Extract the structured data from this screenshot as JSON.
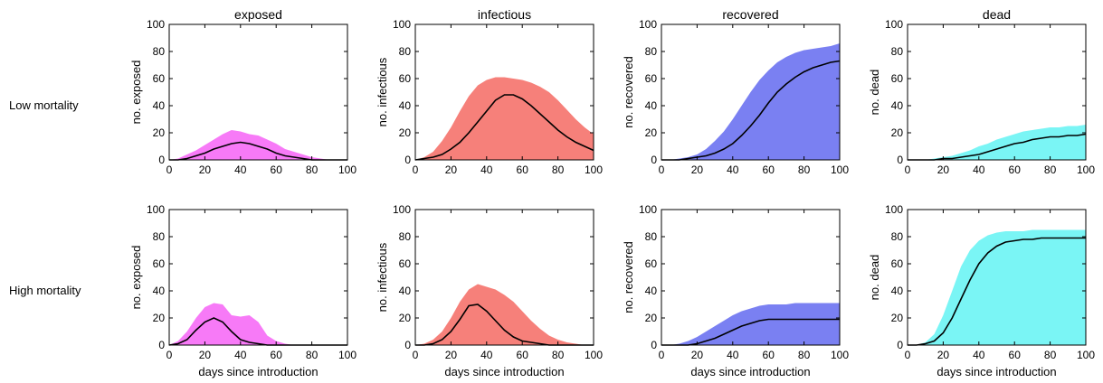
{
  "figure": {
    "column_titles": [
      "exposed",
      "infectious",
      "recovered",
      "dead"
    ],
    "row_labels": [
      "Low mortality",
      "High mortality"
    ]
  },
  "chart_data": [
    {
      "type": "area",
      "row": "Low mortality",
      "column": "exposed",
      "title": "exposed",
      "xlabel": "",
      "ylabel": "no. exposed",
      "xlim": [
        0,
        100
      ],
      "ylim": [
        0,
        100
      ],
      "xticks": [
        0,
        20,
        40,
        60,
        80,
        100
      ],
      "yticks": [
        0,
        20,
        40,
        60,
        80,
        100
      ],
      "color": "#f77af7",
      "x": [
        0,
        5,
        10,
        15,
        20,
        25,
        30,
        35,
        40,
        45,
        50,
        55,
        60,
        65,
        70,
        75,
        80,
        85,
        90,
        95,
        100
      ],
      "upper": [
        0,
        1,
        4,
        7,
        11,
        15,
        19,
        22,
        21,
        19,
        18,
        15,
        12,
        8,
        6,
        4,
        2,
        1,
        0,
        0,
        0
      ],
      "mean": [
        0,
        0,
        1,
        3,
        5,
        8,
        10,
        12,
        13,
        12,
        10,
        8,
        5,
        3,
        2,
        1,
        0,
        0,
        0,
        0,
        0
      ]
    },
    {
      "type": "area",
      "row": "Low mortality",
      "column": "infectious",
      "title": "infectious",
      "xlabel": "",
      "ylabel": "no. infectious",
      "xlim": [
        0,
        100
      ],
      "ylim": [
        0,
        100
      ],
      "xticks": [
        0,
        20,
        40,
        60,
        80,
        100
      ],
      "yticks": [
        0,
        20,
        40,
        60,
        80,
        100
      ],
      "color": "#f6807a",
      "x": [
        0,
        5,
        10,
        15,
        20,
        25,
        30,
        35,
        40,
        45,
        50,
        55,
        60,
        65,
        70,
        75,
        80,
        85,
        90,
        95,
        100
      ],
      "upper": [
        0,
        2,
        6,
        14,
        24,
        36,
        47,
        55,
        59,
        61,
        61,
        60,
        59,
        57,
        54,
        50,
        44,
        37,
        30,
        24,
        19
      ],
      "mean": [
        0,
        1,
        2,
        4,
        8,
        13,
        20,
        28,
        36,
        44,
        48,
        48,
        45,
        40,
        34,
        28,
        22,
        17,
        13,
        10,
        7
      ]
    },
    {
      "type": "area",
      "row": "Low mortality",
      "column": "recovered",
      "title": "recovered",
      "xlabel": "",
      "ylabel": "no. recovered",
      "xlim": [
        0,
        100
      ],
      "ylim": [
        0,
        100
      ],
      "xticks": [
        0,
        20,
        40,
        60,
        80,
        100
      ],
      "yticks": [
        0,
        20,
        40,
        60,
        80,
        100
      ],
      "color": "#7a80f2",
      "x": [
        0,
        5,
        10,
        15,
        20,
        25,
        30,
        35,
        40,
        45,
        50,
        55,
        60,
        65,
        70,
        75,
        80,
        85,
        90,
        95,
        100
      ],
      "upper": [
        0,
        0,
        1,
        2,
        4,
        8,
        14,
        21,
        30,
        40,
        50,
        59,
        66,
        72,
        76,
        79,
        81,
        82,
        83,
        84,
        86
      ],
      "mean": [
        0,
        0,
        0,
        1,
        2,
        3,
        5,
        8,
        12,
        18,
        25,
        33,
        42,
        50,
        56,
        61,
        65,
        68,
        70,
        72,
        73
      ]
    },
    {
      "type": "area",
      "row": "Low mortality",
      "column": "dead",
      "title": "dead",
      "xlabel": "",
      "ylabel": "no. dead",
      "xlim": [
        0,
        100
      ],
      "ylim": [
        0,
        100
      ],
      "xticks": [
        0,
        20,
        40,
        60,
        80,
        100
      ],
      "yticks": [
        0,
        20,
        40,
        60,
        80,
        100
      ],
      "color": "#7af5f5",
      "x": [
        0,
        5,
        10,
        15,
        20,
        25,
        30,
        35,
        40,
        45,
        50,
        55,
        60,
        65,
        70,
        75,
        80,
        85,
        90,
        95,
        100
      ],
      "upper": [
        0,
        0,
        0,
        1,
        2,
        3,
        5,
        7,
        10,
        12,
        15,
        17,
        19,
        21,
        22,
        23,
        24,
        24,
        25,
        25,
        26
      ],
      "mean": [
        0,
        0,
        0,
        0,
        1,
        1,
        2,
        3,
        4,
        6,
        8,
        10,
        12,
        13,
        15,
        16,
        17,
        17,
        18,
        18,
        19
      ]
    },
    {
      "type": "area",
      "row": "High mortality",
      "column": "exposed",
      "title": "",
      "xlabel": "days since introduction",
      "ylabel": "no. exposed",
      "xlim": [
        0,
        100
      ],
      "ylim": [
        0,
        100
      ],
      "xticks": [
        0,
        20,
        40,
        60,
        80,
        100
      ],
      "yticks": [
        0,
        20,
        40,
        60,
        80,
        100
      ],
      "color": "#f77af7",
      "x": [
        0,
        5,
        10,
        15,
        20,
        25,
        30,
        35,
        40,
        45,
        50,
        55,
        60,
        65,
        70,
        75,
        80,
        85,
        90,
        95,
        100
      ],
      "upper": [
        0,
        3,
        10,
        20,
        28,
        31,
        30,
        22,
        21,
        22,
        17,
        7,
        3,
        1,
        0,
        0,
        0,
        0,
        0,
        0,
        0
      ],
      "mean": [
        0,
        1,
        4,
        11,
        17,
        20,
        17,
        10,
        4,
        2,
        1,
        0,
        0,
        0,
        0,
        0,
        0,
        0,
        0,
        0,
        0
      ]
    },
    {
      "type": "area",
      "row": "High mortality",
      "column": "infectious",
      "title": "",
      "xlabel": "days since introduction",
      "ylabel": "no. infectious",
      "xlim": [
        0,
        100
      ],
      "ylim": [
        0,
        100
      ],
      "xticks": [
        0,
        20,
        40,
        60,
        80,
        100
      ],
      "yticks": [
        0,
        20,
        40,
        60,
        80,
        100
      ],
      "color": "#f6807a",
      "x": [
        0,
        5,
        10,
        15,
        20,
        25,
        30,
        35,
        40,
        45,
        50,
        55,
        60,
        65,
        70,
        75,
        80,
        85,
        90,
        95,
        100
      ],
      "upper": [
        0,
        1,
        4,
        10,
        20,
        32,
        41,
        45,
        43,
        41,
        37,
        32,
        25,
        18,
        12,
        7,
        4,
        2,
        1,
        0,
        0
      ],
      "mean": [
        0,
        0,
        1,
        4,
        10,
        19,
        29,
        30,
        25,
        18,
        11,
        6,
        3,
        2,
        1,
        0,
        0,
        0,
        0,
        0,
        0
      ]
    },
    {
      "type": "area",
      "row": "High mortality",
      "column": "recovered",
      "title": "",
      "xlabel": "days since introduction",
      "ylabel": "no. recovered",
      "xlim": [
        0,
        100
      ],
      "ylim": [
        0,
        100
      ],
      "xticks": [
        0,
        20,
        40,
        60,
        80,
        100
      ],
      "yticks": [
        0,
        20,
        40,
        60,
        80,
        100
      ],
      "color": "#7a80f2",
      "x": [
        0,
        5,
        10,
        15,
        20,
        25,
        30,
        35,
        40,
        45,
        50,
        55,
        60,
        65,
        70,
        75,
        80,
        85,
        90,
        95,
        100
      ],
      "upper": [
        0,
        0,
        1,
        3,
        6,
        10,
        14,
        18,
        22,
        25,
        27,
        29,
        30,
        30,
        30,
        31,
        31,
        31,
        31,
        31,
        31
      ],
      "mean": [
        0,
        0,
        0,
        0,
        1,
        3,
        5,
        8,
        11,
        14,
        16,
        18,
        19,
        19,
        19,
        19,
        19,
        19,
        19,
        19,
        19
      ]
    },
    {
      "type": "area",
      "row": "High mortality",
      "column": "dead",
      "title": "",
      "xlabel": "days since introduction",
      "ylabel": "no. dead",
      "xlim": [
        0,
        100
      ],
      "ylim": [
        0,
        100
      ],
      "xticks": [
        0,
        20,
        40,
        60,
        80,
        100
      ],
      "yticks": [
        0,
        20,
        40,
        60,
        80,
        100
      ],
      "color": "#7af5f5",
      "x": [
        0,
        5,
        10,
        15,
        20,
        25,
        30,
        35,
        40,
        45,
        50,
        55,
        60,
        65,
        70,
        75,
        80,
        85,
        90,
        95,
        100
      ],
      "upper": [
        0,
        0,
        2,
        8,
        22,
        40,
        58,
        70,
        77,
        81,
        83,
        84,
        84,
        84,
        85,
        85,
        85,
        85,
        85,
        85,
        85
      ],
      "mean": [
        0,
        0,
        1,
        3,
        9,
        20,
        34,
        48,
        60,
        68,
        73,
        76,
        77,
        78,
        78,
        79,
        79,
        79,
        79,
        79,
        79
      ]
    }
  ]
}
